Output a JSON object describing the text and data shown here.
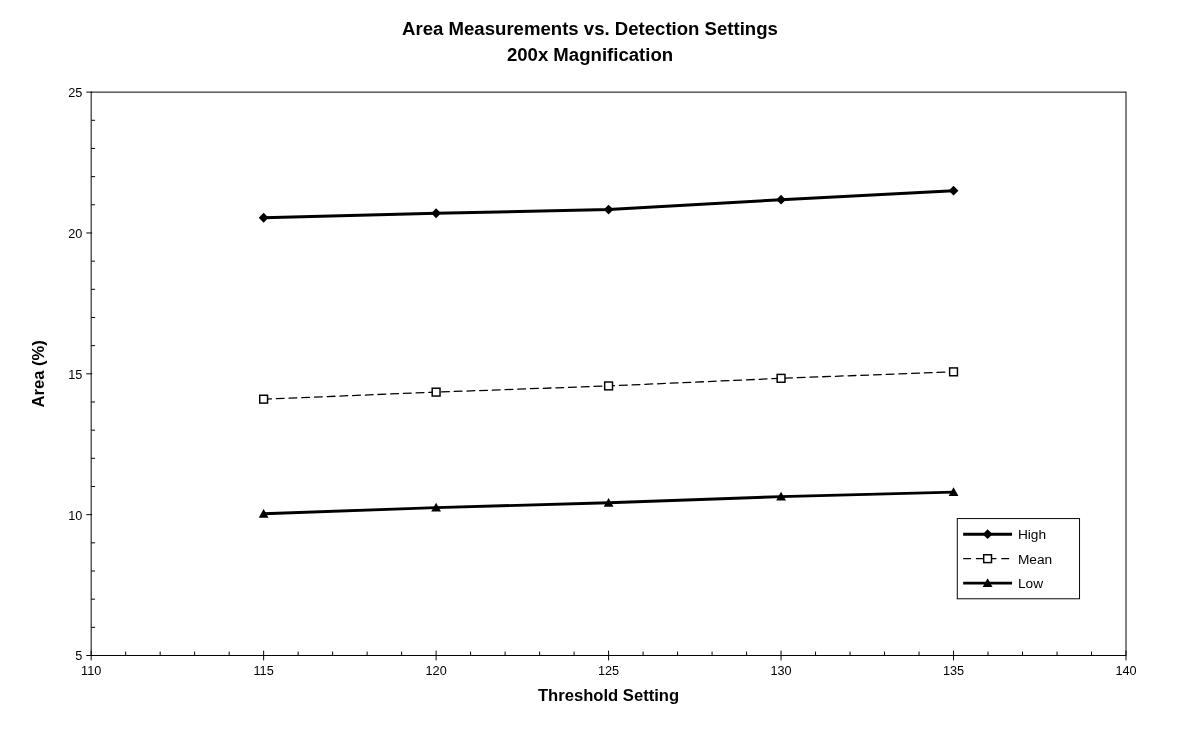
{
  "chart_data": {
    "type": "line",
    "title": "Area Measurements vs. Detection Settings",
    "subtitle": "200x Magnification",
    "xlabel": "Threshold Setting",
    "ylabel": "Area (%)",
    "x": [
      115,
      120,
      125,
      130,
      135
    ],
    "series": [
      {
        "name": "High",
        "color": "#000000",
        "marker": "diamond",
        "line_style": "solid",
        "values": [
          20.54,
          20.7,
          20.83,
          21.18,
          21.5
        ]
      },
      {
        "name": "Mean",
        "color": "#000000",
        "marker": "square",
        "line_style": "dashed",
        "values": [
          14.1,
          14.35,
          14.57,
          14.84,
          15.07
        ]
      },
      {
        "name": "Low",
        "color": "#000000",
        "marker": "triangle",
        "line_style": "solid",
        "values": [
          10.03,
          10.25,
          10.42,
          10.64,
          10.8
        ]
      }
    ],
    "xlim": [
      110,
      140
    ],
    "ylim": [
      5,
      25
    ],
    "xticks": [
      110,
      {
        "value": 111,
        "label": null
      },
      {
        "value": 112,
        "label": null
      },
      {
        "value": 113,
        "label": null
      },
      {
        "value": 114,
        "label": null
      },
      115,
      {
        "value": 116,
        "label": null
      },
      {
        "value": 117,
        "label": null
      },
      {
        "value": 118,
        "label": null
      },
      {
        "value": 119,
        "label": null
      },
      120,
      {
        "value": 121,
        "label": null
      },
      {
        "value": 122,
        "label": null
      },
      {
        "value": 123,
        "label": null
      },
      {
        "value": 124,
        "label": null
      },
      125,
      {
        "value": 126,
        "label": null
      },
      {
        "value": 127,
        "label": null
      },
      {
        "value": 128,
        "label": null
      },
      {
        "value": 129,
        "label": null
      },
      130,
      {
        "value": 131,
        "label": null
      },
      {
        "value": 132,
        "label": null
      },
      {
        "value": 133,
        "label": null
      },
      {
        "value": 134,
        "label": null
      },
      135,
      {
        "value": 136,
        "label": null
      },
      {
        "value": 137,
        "label": null
      },
      {
        "value": 138,
        "label": null
      },
      {
        "value": 139,
        "label": null
      },
      140
    ],
    "yticks": [
      5,
      {
        "value": 6,
        "label": null
      },
      {
        "value": 7,
        "label": null
      },
      {
        "value": 8,
        "label": null
      },
      {
        "value": 9,
        "label": null
      },
      10,
      {
        "value": 11,
        "label": null
      },
      {
        "value": 12,
        "label": null
      },
      {
        "value": 13,
        "label": null
      },
      {
        "value": 14,
        "label": null
      },
      15,
      {
        "value": 16,
        "label": null
      },
      {
        "value": 17,
        "label": null
      },
      {
        "value": 18,
        "label": null
      },
      {
        "value": 19,
        "label": null
      },
      20,
      {
        "value": 21,
        "label": null
      },
      {
        "value": 22,
        "label": null
      },
      {
        "value": 23,
        "label": null
      },
      {
        "value": 24,
        "label": null
      },
      25
    ],
    "grid": false,
    "legend": "bottom right"
  }
}
